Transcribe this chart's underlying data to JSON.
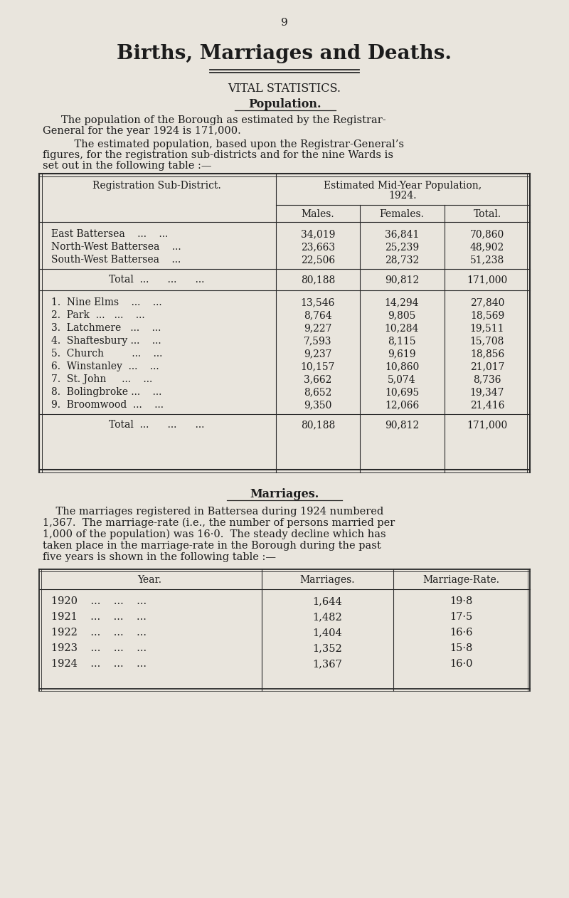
{
  "page_number": "9",
  "main_title": "Births, Marriages and Deaths.",
  "subtitle": "VITAL STATISTICS.",
  "section1_heading": "Population.",
  "para1a": "The population of the Borough as estimated by the Registrar-",
  "para1b": "General for the year 1924 is 171,000.",
  "para2a": "    The estimated population, based upon the Registrar-General’s",
  "para2b": "figures, for the registration sub-districts and for the nine Wards is",
  "para2c": "set out in the following table :—",
  "t1_hdr1": "Registration Sub-District.",
  "t1_hdr2a": "Estimated Mid-Year Population,",
  "t1_hdr2b": "1924.",
  "t1_hdr_males": "Males.",
  "t1_hdr_females": "Females.",
  "t1_hdr_total": "Total.",
  "sub_rows": [
    [
      "East Battersea    ...    ...",
      "34,019",
      "36,841",
      "70,860"
    ],
    [
      "North-West Battersea    ...",
      "23,663",
      "25,239",
      "48,902"
    ],
    [
      "South-West Battersea    ...",
      "22,506",
      "28,732",
      "51,238"
    ]
  ],
  "total1": [
    "Total  ...      ...      ...",
    "80,188",
    "90,812",
    "171,000"
  ],
  "ward_rows": [
    [
      "1.  Nine Elms    ...    ...",
      "13,546",
      "14,294",
      "27,840"
    ],
    [
      "2.  Park  ...   ...    ...",
      "8,764",
      "9,805",
      "18,569"
    ],
    [
      "3.  Latchmere   ...    ...",
      "9,227",
      "10,284",
      "19,511"
    ],
    [
      "4.  Shaftesbury ...    ...",
      "7,593",
      "8,115",
      "15,708"
    ],
    [
      "5.  Church         ...    ...",
      "9,237",
      "9,619",
      "18,856"
    ],
    [
      "6.  Winstanley  ...    ...",
      "10,157",
      "10,860",
      "21,017"
    ],
    [
      "7.  St. John     ...    ...",
      "3,662",
      "5,074",
      "8,736"
    ],
    [
      "8.  Bolingbroke ...    ...",
      "8,652",
      "10,695",
      "19,347"
    ],
    [
      "9.  Broomwood  ...    ...",
      "9,350",
      "12,066",
      "21,416"
    ]
  ],
  "total2": [
    "Total  ...      ...      ...",
    "80,188",
    "90,812",
    "171,000"
  ],
  "section2_heading": "Marriages.",
  "marriages_para": [
    "    The marriages registered in Battersea during 1924 numbered",
    "1,367.  The marriage-rate (i.e., the number of persons married per",
    "1,000 of the population) was 16·0.  The steady decline which has",
    "taken place in the marriage-rate in the Borough during the past",
    "five years is shown in the following table :—"
  ],
  "t2_hdr1": "Year.",
  "t2_hdr2": "Marriages.",
  "t2_hdr3": "Marriage-Rate.",
  "marriage_rows": [
    [
      "1920    ...    ...    ...",
      "1,644",
      "19·8"
    ],
    [
      "1921    ...    ...    ...",
      "1,482",
      "17·5"
    ],
    [
      "1922    ...    ...    ...",
      "1,404",
      "16·6"
    ],
    [
      "1923    ...    ...    ...",
      "1,352",
      "15·8"
    ],
    [
      "1924    ...    ...    ...",
      "1,367",
      "16·0"
    ]
  ],
  "bg_color": "#e9e5dd",
  "text_color": "#1c1c1c",
  "line_color": "#2a2a2a"
}
